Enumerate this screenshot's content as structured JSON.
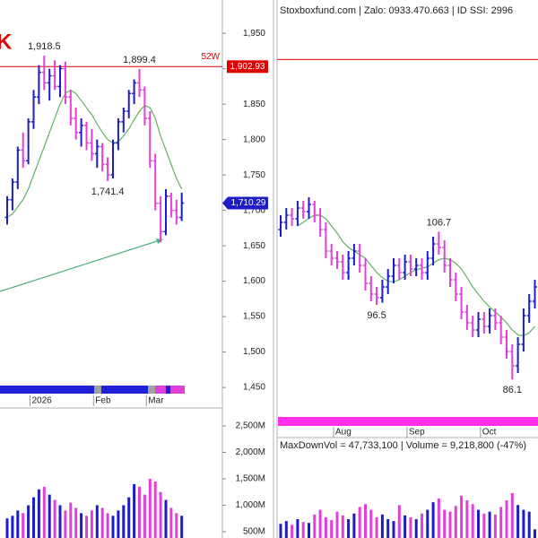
{
  "chart_data": [
    {
      "type": "ohlc",
      "annotation": "K",
      "categories": [
        null,
        null,
        null,
        null,
        null,
        "2026",
        null,
        null,
        null,
        null,
        null,
        null,
        null,
        null,
        null,
        null,
        null,
        "Feb",
        null,
        null,
        null,
        null,
        null,
        null,
        null,
        null,
        null,
        "Mar",
        null,
        null,
        null,
        null,
        null,
        null
      ],
      "open": [
        1690,
        1715,
        1740,
        1785,
        1770,
        1825,
        1860,
        1895,
        1880,
        1890,
        1875,
        1900,
        1860,
        1830,
        1810,
        1820,
        1795,
        1780,
        1790,
        1765,
        1750,
        1795,
        1825,
        1840,
        1865,
        1880,
        1870,
        1830,
        1770,
        1710,
        1670,
        1720,
        1700,
        1690
      ],
      "high": [
        1720,
        1745,
        1790,
        1810,
        1830,
        1870,
        1905,
        1918.5,
        1900,
        1912,
        1905,
        1910,
        1870,
        1845,
        1830,
        1825,
        1815,
        1800,
        1795,
        1775,
        1800,
        1830,
        1845,
        1870,
        1885,
        1899.4,
        1875,
        1840,
        1780,
        1720,
        1730,
        1725,
        1715,
        1725
      ],
      "low": [
        1680,
        1700,
        1730,
        1760,
        1765,
        1815,
        1850,
        1870,
        1855,
        1870,
        1860,
        1850,
        1820,
        1800,
        1790,
        1785,
        1770,
        1760,
        1755,
        1741.4,
        1745,
        1785,
        1810,
        1830,
        1850,
        1860,
        1820,
        1760,
        1700,
        1655,
        1665,
        1690,
        1680,
        1685
      ],
      "close": [
        1715,
        1740,
        1785,
        1770,
        1825,
        1860,
        1895,
        1880,
        1890,
        1875,
        1900,
        1860,
        1830,
        1810,
        1820,
        1795,
        1780,
        1790,
        1765,
        1750,
        1795,
        1825,
        1840,
        1865,
        1880,
        1870,
        1830,
        1770,
        1710,
        1670,
        1720,
        1700,
        1690,
        1710.29
      ],
      "high_labels": [
        null,
        null,
        null,
        null,
        null,
        null,
        null,
        "1,918.5",
        null,
        null,
        null,
        null,
        null,
        null,
        null,
        null,
        null,
        null,
        null,
        null,
        null,
        null,
        null,
        null,
        null,
        "1,899.4",
        null,
        null,
        null,
        null,
        null,
        null,
        null,
        null
      ],
      "low_labels": [
        null,
        null,
        null,
        null,
        null,
        null,
        null,
        null,
        null,
        null,
        null,
        null,
        null,
        null,
        null,
        null,
        null,
        null,
        null,
        "1,741.4",
        null,
        null,
        null,
        null,
        null,
        null,
        null,
        null,
        null,
        null,
        null,
        null,
        null,
        null
      ],
      "up_color": "#1c1cc8",
      "down_color": "#e040d8",
      "ma": {
        "color": "#5fb35f",
        "values": [
          1690,
          1695,
          1705,
          1715,
          1730,
          1750,
          1770,
          1790,
          1810,
          1830,
          1850,
          1865,
          1870,
          1865,
          1855,
          1845,
          1835,
          1822,
          1810,
          1800,
          1795,
          1797,
          1805,
          1815,
          1828,
          1840,
          1848,
          1845,
          1830,
          1805,
          1785,
          1765,
          1745,
          1730
        ]
      },
      "ylim": [
        1440,
        1997
      ],
      "yticks": [
        {
          "value": 1450,
          "label": "1,450"
        },
        {
          "value": 1500,
          "label": "1,500"
        },
        {
          "value": 1550,
          "label": "1,550"
        },
        {
          "value": 1600,
          "label": "1,600"
        },
        {
          "value": 1650,
          "label": "1,650"
        },
        {
          "value": 1700,
          "label": "1,700"
        },
        {
          "value": 1750,
          "label": "1,750"
        },
        {
          "value": 1800,
          "label": "1,800"
        },
        {
          "value": 1850,
          "label": "1,850"
        },
        {
          "value": 1900,
          "label": "1,900"
        },
        {
          "value": 1950,
          "label": "1,950"
        }
      ],
      "reference_lines": [
        {
          "name": "52W",
          "value": 1902.93,
          "label": "1,902.93",
          "color": "#e00000"
        }
      ],
      "last_price": {
        "value": 1710.29,
        "label": "1,710.29",
        "color": "#1c1cc8"
      },
      "volume": {
        "ylim": [
          380,
          2890
        ],
        "yticks": [
          {
            "value": 500,
            "label": "500M"
          },
          {
            "value": 1000,
            "label": "1,000M"
          },
          {
            "value": 1500,
            "label": "1,500M"
          },
          {
            "value": 2000,
            "label": "2,000M"
          },
          {
            "value": 2500,
            "label": "2,500M"
          }
        ],
        "values": [
          750,
          800,
          900,
          850,
          1000,
          1150,
          1300,
          1350,
          1200,
          1100,
          1000,
          900,
          1050,
          950,
          850,
          800,
          900,
          1000,
          950,
          850,
          800,
          900,
          1000,
          1150,
          1400,
          1350,
          1200,
          1500,
          1450,
          1250,
          1100,
          950,
          850,
          800
        ]
      }
    },
    {
      "type": "ohlc",
      "header": "Stoxboxfund.com | Zalo: 0933.470.663 | ID SSI: 2996",
      "categories": [
        null,
        null,
        null,
        null,
        null,
        null,
        null,
        null,
        null,
        null,
        "Aug",
        null,
        null,
        null,
        null,
        null,
        null,
        null,
        null,
        null,
        null,
        null,
        null,
        "Sep",
        null,
        null,
        null,
        null,
        null,
        null,
        null,
        null,
        null,
        null,
        null,
        null,
        "Oct",
        null,
        null,
        null,
        null,
        null,
        null,
        null,
        null,
        null
      ],
      "open": [
        107,
        108,
        109,
        108.5,
        110,
        109.5,
        110.5,
        109,
        107,
        104,
        103,
        102.5,
        101,
        103,
        104,
        102,
        99.5,
        98,
        97.5,
        99,
        100.5,
        102,
        101,
        102.5,
        101.5,
        102,
        101,
        103,
        105,
        104.5,
        102,
        100,
        98,
        95.5,
        94,
        93,
        94.5,
        93.5,
        95,
        94,
        92,
        90,
        88,
        91,
        95,
        97
      ],
      "high": [
        109,
        110,
        110,
        111,
        111,
        111.5,
        111,
        110,
        108,
        105,
        104,
        103.5,
        104,
        105,
        105,
        103,
        100.5,
        99,
        100,
        101.5,
        103,
        103,
        103.5,
        103.5,
        103,
        103,
        104,
        106,
        106.7,
        105.5,
        103,
        101,
        99,
        96.5,
        95,
        95.5,
        95.5,
        96,
        96,
        95,
        93,
        91,
        92,
        96,
        98,
        100
      ],
      "low": [
        106,
        107,
        107.5,
        107.5,
        108.5,
        108.5,
        108,
        106,
        103,
        102,
        101.5,
        100,
        100,
        102,
        101,
        98.5,
        97,
        96.5,
        96.8,
        98,
        99.5,
        100,
        100,
        100.5,
        100.5,
        100,
        100,
        102,
        103.5,
        101,
        99,
        97,
        94.5,
        93,
        92,
        92,
        92.5,
        92.5,
        93,
        91,
        89,
        86.1,
        87,
        90,
        94,
        96
      ],
      "close": [
        108,
        109,
        108.5,
        110,
        109.5,
        110.5,
        109,
        107,
        104,
        103,
        102.5,
        101,
        103,
        104,
        102,
        99.5,
        98,
        97.5,
        99,
        100.5,
        102,
        101,
        102.5,
        101.5,
        102,
        101,
        103,
        105,
        104.5,
        102,
        100,
        98,
        95.5,
        94,
        93,
        94.5,
        93.5,
        95,
        94,
        92,
        90,
        88,
        91,
        95,
        97,
        99
      ],
      "high_labels": [
        null,
        null,
        null,
        null,
        null,
        null,
        null,
        null,
        null,
        null,
        null,
        null,
        null,
        null,
        null,
        null,
        null,
        null,
        null,
        null,
        null,
        null,
        null,
        null,
        null,
        null,
        null,
        null,
        "106.7",
        null,
        null,
        null,
        null,
        null,
        null,
        null,
        null,
        null,
        null,
        null,
        null,
        null,
        null,
        null,
        null,
        null
      ],
      "low_labels": [
        null,
        null,
        null,
        null,
        null,
        null,
        null,
        null,
        null,
        null,
        null,
        null,
        null,
        null,
        null,
        null,
        null,
        "96.5",
        null,
        null,
        null,
        null,
        null,
        null,
        null,
        null,
        null,
        null,
        null,
        null,
        null,
        null,
        null,
        null,
        null,
        null,
        null,
        null,
        null,
        null,
        null,
        "86.1",
        null,
        null,
        null,
        null
      ],
      "up_color": "#1c1cc8",
      "down_color": "#e040d8",
      "ma": {
        "color": "#5fb35f",
        "values": [
          null,
          null,
          null,
          107.5,
          108,
          108.6,
          109,
          109,
          108.5,
          107.5,
          106.5,
          105.3,
          104.5,
          104,
          103.5,
          103,
          102,
          101,
          100.3,
          99.8,
          99.7,
          100,
          100.5,
          101,
          101.4,
          101.6,
          101.8,
          102.3,
          102.8,
          103,
          102.8,
          102.3,
          101.5,
          100.3,
          99,
          98,
          97,
          96.2,
          95.5,
          94.8,
          94,
          93,
          92.3,
          92.2,
          92.6,
          93.5
        ]
      },
      "ylim": [
        84,
        139
      ],
      "reference_lines": [
        {
          "value": 130.7,
          "color": "#e00000"
        }
      ],
      "volume": {
        "ylim": [
          0,
          141000000
        ],
        "values": [
          15000000,
          18000000,
          14000000,
          20000000,
          17000000,
          16000000,
          25000000,
          30000000,
          22000000,
          19000000,
          28000000,
          24000000,
          20000000,
          26000000,
          33000000,
          36000000,
          30000000,
          22000000,
          25000000,
          20000000,
          18000000,
          35000000,
          24000000,
          22000000,
          20000000,
          26000000,
          30000000,
          38000000,
          42000000,
          30000000,
          28000000,
          34000000,
          45000000,
          40000000,
          36000000,
          30000000,
          26000000,
          28000000,
          25000000,
          33000000,
          40000000,
          47733100,
          35000000,
          30000000,
          28000000,
          9218800
        ]
      },
      "volume_text": "MaxDownVol = 47,733,100 | Volume = 9,218,800 (-47%)"
    }
  ]
}
